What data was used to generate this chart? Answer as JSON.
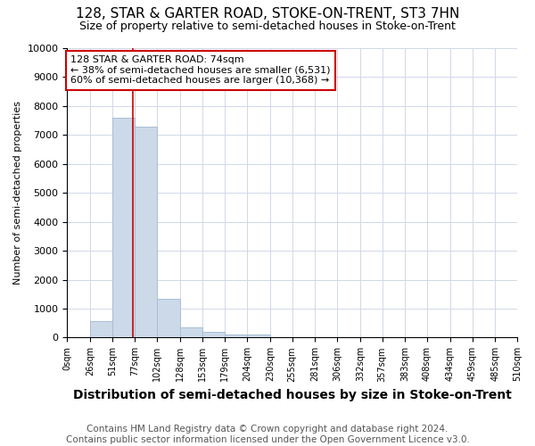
{
  "title": "128, STAR & GARTER ROAD, STOKE-ON-TRENT, ST3 7HN",
  "subtitle": "Size of property relative to semi-detached houses in Stoke-on-Trent",
  "xlabel": "Distribution of semi-detached houses by size in Stoke-on-Trent",
  "ylabel": "Number of semi-detached properties",
  "footer": "Contains HM Land Registry data © Crown copyright and database right 2024.\nContains public sector information licensed under the Open Government Licence v3.0.",
  "bin_edges": [
    0,
    26,
    51,
    77,
    102,
    128,
    153,
    179,
    204,
    230,
    255,
    281,
    306,
    332,
    357,
    383,
    408,
    434,
    459,
    485,
    510
  ],
  "bar_heights": [
    0,
    560,
    7600,
    7280,
    1350,
    350,
    200,
    120,
    100,
    0,
    0,
    0,
    0,
    0,
    0,
    0,
    0,
    0,
    0,
    0
  ],
  "bar_color": "#ccd9e8",
  "bar_edge_color": "#a8bfd4",
  "property_size": 74,
  "property_line_color": "#cc0000",
  "annotation_text": "128 STAR & GARTER ROAD: 74sqm\n← 38% of semi-detached houses are smaller (6,531)\n60% of semi-detached houses are larger (10,368) →",
  "annotation_box_color": "#ffffff",
  "annotation_edge_color": "#cc0000",
  "ylim": [
    0,
    10000
  ],
  "yticks": [
    0,
    1000,
    2000,
    3000,
    4000,
    5000,
    6000,
    7000,
    8000,
    9000,
    10000
  ],
  "tick_labels": [
    "0sqm",
    "26sqm",
    "51sqm",
    "77sqm",
    "102sqm",
    "128sqm",
    "153sqm",
    "179sqm",
    "204sqm",
    "230sqm",
    "255sqm",
    "281sqm",
    "306sqm",
    "332sqm",
    "357sqm",
    "383sqm",
    "408sqm",
    "434sqm",
    "459sqm",
    "485sqm",
    "510sqm"
  ],
  "figure_bg": "#ffffff",
  "axes_bg": "#ffffff",
  "grid_color": "#d0d8e8",
  "title_fontsize": 11,
  "subtitle_fontsize": 9,
  "xlabel_fontsize": 10,
  "ylabel_fontsize": 8,
  "footer_fontsize": 7.5
}
